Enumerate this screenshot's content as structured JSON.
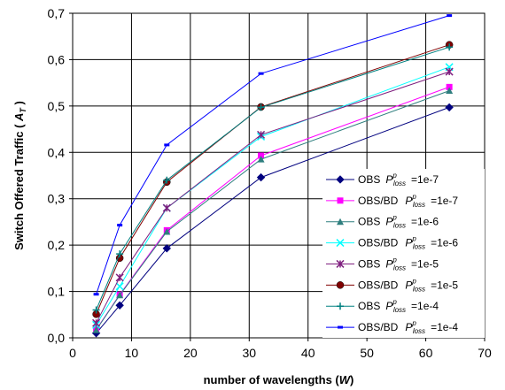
{
  "chart_data": {
    "type": "line",
    "title": "",
    "xlabel": "number of wavelengths",
    "xlabel_symbol": "W",
    "ylabel": "Switch Offered Traffic",
    "ylabel_symbol": "A",
    "ylabel_symbol_sub": "T",
    "xlim": [
      0,
      70
    ],
    "ylim": [
      0,
      0.7
    ],
    "xticks": [
      0,
      10,
      20,
      30,
      40,
      50,
      60,
      70
    ],
    "yticks": [
      "0,0",
      "0,1",
      "0,2",
      "0,3",
      "0,4",
      "0,5",
      "0,6",
      "0,7"
    ],
    "grid": true,
    "legend_position": "lower-right",
    "x": [
      4,
      8,
      16,
      32,
      64
    ],
    "series": [
      {
        "name": "OBS",
        "plabel": "P",
        "psup": "p",
        "psub": "loss",
        "pvalue": "=1e-7",
        "color": "#00007f",
        "marker": "diamond",
        "values": [
          0.01,
          0.07,
          0.193,
          0.346,
          0.497
        ]
      },
      {
        "name": "OBS/BD",
        "plabel": "P",
        "psup": "p",
        "psub": "loss",
        "pvalue": "=1e-7",
        "color": "#ff00ff",
        "marker": "square",
        "values": [
          0.018,
          0.093,
          0.232,
          0.393,
          0.541
        ]
      },
      {
        "name": "OBS",
        "plabel": "P",
        "psup": "p",
        "psub": "loss",
        "pvalue": "=1e-6",
        "color": "#2f7f7f",
        "marker": "triangle",
        "values": [
          0.017,
          0.092,
          0.229,
          0.385,
          0.533
        ]
      },
      {
        "name": "OBS/BD",
        "plabel": "P",
        "psup": "p",
        "psub": "loss",
        "pvalue": "=1e-6",
        "color": "#00ffff",
        "marker": "x",
        "values": [
          0.028,
          0.111,
          0.28,
          0.434,
          0.584
        ]
      },
      {
        "name": "OBS",
        "plabel": "P",
        "psup": "p",
        "psub": "loss",
        "pvalue": "=1e-5",
        "color": "#7f1f7f",
        "marker": "star",
        "values": [
          0.032,
          0.13,
          0.28,
          0.438,
          0.574
        ]
      },
      {
        "name": "OBS/BD",
        "plabel": "P",
        "psup": "p",
        "psub": "loss",
        "pvalue": "=1e-5",
        "color": "#800000",
        "marker": "circle",
        "values": [
          0.051,
          0.172,
          0.336,
          0.498,
          0.632
        ]
      },
      {
        "name": "OBS",
        "plabel": "P",
        "psup": "p",
        "psub": "loss",
        "pvalue": "=1e-4",
        "color": "#008080",
        "marker": "plus",
        "values": [
          0.06,
          0.181,
          0.34,
          0.497,
          0.627
        ]
      },
      {
        "name": "OBS/BD",
        "plabel": "P",
        "psup": "p",
        "psub": "loss",
        "pvalue": "=1e-4",
        "color": "#0000ff",
        "marker": "dash",
        "values": [
          0.094,
          0.243,
          0.416,
          0.57,
          0.695
        ]
      }
    ]
  }
}
